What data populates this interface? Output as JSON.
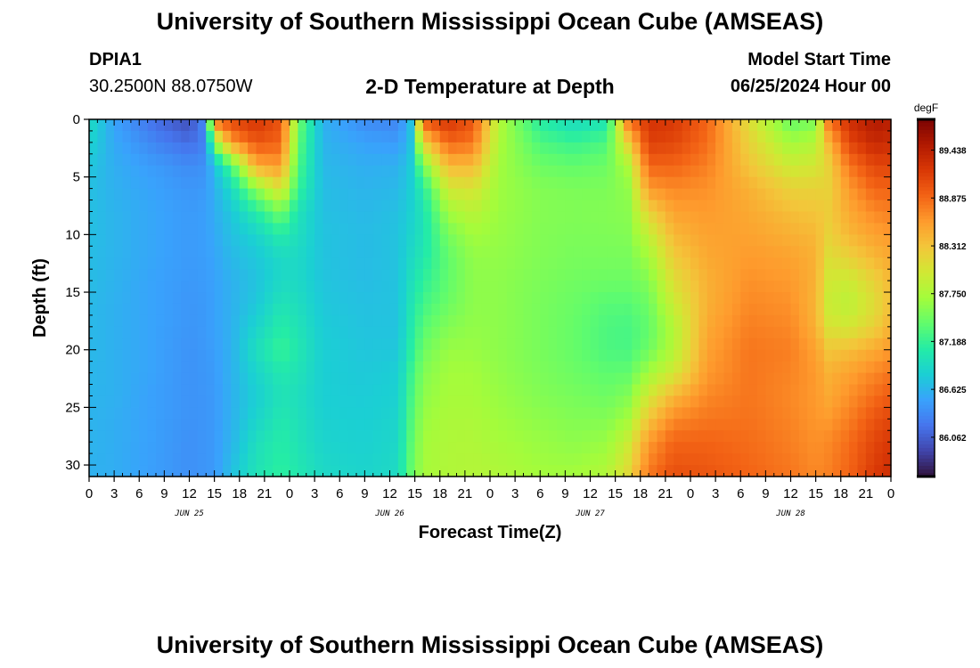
{
  "header": {
    "title": "University of Southern Mississippi Ocean Cube (AMSEAS)",
    "station_id": "DPIA1",
    "station_location": "30.2500N  88.0750W",
    "subtitle": "2-D Temperature at Depth",
    "model_start_label": "Model Start Time",
    "model_start_value": "06/25/2024 Hour 00"
  },
  "footer": {
    "title": "University of Southern Mississippi Ocean Cube (AMSEAS)"
  },
  "chart_data": {
    "type": "heatmap",
    "xlabel": "Forecast Time(Z)",
    "ylabel": "Depth (ft)",
    "x_hours_range": [
      0,
      96
    ],
    "x_ticks": [
      {
        "hour": 0,
        "label": "0"
      },
      {
        "hour": 3,
        "label": "3"
      },
      {
        "hour": 6,
        "label": "6"
      },
      {
        "hour": 9,
        "label": "9"
      },
      {
        "hour": 12,
        "label": "12"
      },
      {
        "hour": 15,
        "label": "15"
      },
      {
        "hour": 18,
        "label": "18"
      },
      {
        "hour": 21,
        "label": "21"
      },
      {
        "hour": 24,
        "label": "0"
      },
      {
        "hour": 27,
        "label": "3"
      },
      {
        "hour": 30,
        "label": "6"
      },
      {
        "hour": 33,
        "label": "9"
      },
      {
        "hour": 36,
        "label": "12"
      },
      {
        "hour": 39,
        "label": "15"
      },
      {
        "hour": 42,
        "label": "18"
      },
      {
        "hour": 45,
        "label": "21"
      },
      {
        "hour": 48,
        "label": "0"
      },
      {
        "hour": 51,
        "label": "3"
      },
      {
        "hour": 54,
        "label": "6"
      },
      {
        "hour": 57,
        "label": "9"
      },
      {
        "hour": 60,
        "label": "12"
      },
      {
        "hour": 63,
        "label": "15"
      },
      {
        "hour": 66,
        "label": "18"
      },
      {
        "hour": 69,
        "label": "21"
      },
      {
        "hour": 72,
        "label": "0"
      },
      {
        "hour": 75,
        "label": "3"
      },
      {
        "hour": 78,
        "label": "6"
      },
      {
        "hour": 81,
        "label": "9"
      },
      {
        "hour": 84,
        "label": "12"
      },
      {
        "hour": 87,
        "label": "15"
      },
      {
        "hour": 90,
        "label": "18"
      },
      {
        "hour": 93,
        "label": "21"
      },
      {
        "hour": 96,
        "label": "0"
      }
    ],
    "date_labels": [
      {
        "hour": 12,
        "label": "JUN 25"
      },
      {
        "hour": 36,
        "label": "JUN 26"
      },
      {
        "hour": 60,
        "label": "JUN 27"
      },
      {
        "hour": 84,
        "label": "JUN 28"
      }
    ],
    "y_range": [
      0,
      31
    ],
    "y_ticks": [
      0,
      5,
      10,
      15,
      20,
      25,
      30
    ],
    "y_inverted": true,
    "colorbar": {
      "unit": "degF",
      "range": [
        85.6,
        89.8
      ],
      "ticks": [
        "89.438",
        "88.875",
        "88.312",
        "87.750",
        "87.188",
        "86.625",
        "86.062"
      ],
      "colormap": [
        "#30123b",
        "#4145ab",
        "#4675ed",
        "#39a2fc",
        "#1bcfd4",
        "#24eca6",
        "#61fc6c",
        "#a4fc3b",
        "#d1e834",
        "#f3c63a",
        "#fe9b2d",
        "#f36315",
        "#d93806",
        "#b11901",
        "#7a0402"
      ]
    },
    "profiles": {
      "depths": [
        0,
        2,
        4,
        6,
        8,
        10,
        12,
        14,
        16,
        18,
        20,
        22,
        24,
        26,
        28,
        31
      ],
      "series": [
        {
          "hour": 0,
          "values": [
            86.95,
            86.85,
            86.75,
            86.7,
            86.7,
            86.7,
            86.68,
            86.68,
            86.66,
            86.65,
            86.65,
            86.64,
            86.63,
            86.62,
            86.62,
            86.6
          ]
        },
        {
          "hour": 3,
          "values": [
            86.5,
            86.55,
            86.58,
            86.6,
            86.62,
            86.62,
            86.62,
            86.61,
            86.6,
            86.6,
            86.6,
            86.6,
            86.6,
            86.58,
            86.58,
            86.58
          ]
        },
        {
          "hour": 8,
          "values": [
            86.15,
            86.3,
            86.45,
            86.5,
            86.52,
            86.52,
            86.52,
            86.5,
            86.5,
            86.5,
            86.5,
            86.5,
            86.48,
            86.48,
            86.48,
            86.47
          ]
        },
        {
          "hour": 12,
          "values": [
            85.95,
            86.15,
            86.35,
            86.42,
            86.45,
            86.45,
            86.45,
            86.44,
            86.42,
            86.42,
            86.4,
            86.4,
            86.4,
            86.4,
            86.38,
            86.38
          ]
        },
        {
          "hour": 14,
          "values": [
            86.4,
            86.3,
            86.4,
            86.45,
            86.48,
            86.48,
            86.48,
            86.46,
            86.45,
            86.45,
            86.44,
            86.43,
            86.42,
            86.42,
            86.42,
            86.42
          ]
        },
        {
          "hour": 15,
          "values": [
            88.9,
            87.6,
            86.7,
            86.6,
            86.58,
            86.55,
            86.52,
            86.5,
            86.5,
            86.5,
            86.48,
            86.46,
            86.45,
            86.45,
            86.45,
            86.45
          ]
        },
        {
          "hour": 17,
          "values": [
            89.1,
            88.6,
            87.3,
            86.9,
            86.75,
            86.7,
            86.65,
            86.6,
            86.6,
            86.6,
            86.6,
            86.6,
            86.6,
            86.6,
            86.62,
            86.7
          ]
        },
        {
          "hour": 20,
          "values": [
            89.25,
            89.0,
            88.5,
            87.6,
            87.1,
            86.85,
            86.75,
            86.72,
            86.75,
            86.85,
            86.95,
            86.85,
            86.8,
            86.85,
            86.95,
            87.0
          ]
        },
        {
          "hour": 23,
          "values": [
            89.0,
            88.9,
            88.6,
            88.1,
            87.5,
            87.1,
            86.9,
            86.9,
            87.0,
            87.1,
            87.2,
            87.05,
            87.0,
            87.05,
            87.1,
            87.15
          ]
        },
        {
          "hour": 25,
          "values": [
            87.5,
            87.4,
            87.3,
            87.2,
            87.0,
            86.95,
            86.9,
            86.9,
            86.95,
            87.0,
            87.05,
            87.0,
            86.95,
            86.98,
            87.0,
            87.05
          ]
        },
        {
          "hour": 28,
          "values": [
            86.6,
            86.62,
            86.65,
            86.68,
            86.7,
            86.72,
            86.72,
            86.73,
            86.75,
            86.78,
            86.8,
            86.8,
            86.8,
            86.82,
            86.85,
            86.9
          ]
        },
        {
          "hour": 33,
          "values": [
            86.35,
            86.5,
            86.58,
            86.62,
            86.65,
            86.67,
            86.67,
            86.68,
            86.7,
            86.72,
            86.74,
            86.76,
            86.78,
            86.8,
            86.82,
            86.85
          ]
        },
        {
          "hour": 37,
          "values": [
            86.3,
            86.45,
            86.6,
            86.65,
            86.7,
            86.72,
            86.72,
            86.72,
            86.72,
            86.72,
            86.75,
            86.8,
            86.82,
            86.85,
            86.88,
            86.92
          ]
        },
        {
          "hour": 38.5,
          "values": [
            86.7,
            86.72,
            86.78,
            86.8,
            86.82,
            86.85,
            86.9,
            86.95,
            87.0,
            87.05,
            87.1,
            87.2,
            87.25,
            87.3,
            87.35,
            87.4
          ]
        },
        {
          "hour": 40,
          "values": [
            89.0,
            88.2,
            87.5,
            87.1,
            87.0,
            87.0,
            87.05,
            87.15,
            87.25,
            87.35,
            87.45,
            87.55,
            87.6,
            87.65,
            87.7,
            87.72
          ]
        },
        {
          "hour": 43,
          "values": [
            89.25,
            88.9,
            88.4,
            88.0,
            87.7,
            87.5,
            87.4,
            87.4,
            87.45,
            87.55,
            87.65,
            87.7,
            87.72,
            87.75,
            87.77,
            87.78
          ]
        },
        {
          "hour": 46,
          "values": [
            89.0,
            88.8,
            88.4,
            88.05,
            87.85,
            87.7,
            87.62,
            87.6,
            87.6,
            87.62,
            87.65,
            87.7,
            87.72,
            87.75,
            87.78,
            87.8
          ]
        },
        {
          "hour": 49,
          "values": [
            87.8,
            87.75,
            87.7,
            87.68,
            87.66,
            87.64,
            87.62,
            87.6,
            87.6,
            87.6,
            87.6,
            87.62,
            87.65,
            87.68,
            87.72,
            87.78
          ]
        },
        {
          "hour": 54,
          "values": [
            87.1,
            87.3,
            87.45,
            87.55,
            87.56,
            87.55,
            87.54,
            87.52,
            87.5,
            87.5,
            87.5,
            87.52,
            87.55,
            87.6,
            87.65,
            87.7
          ]
        },
        {
          "hour": 58,
          "values": [
            86.9,
            87.2,
            87.4,
            87.52,
            87.54,
            87.52,
            87.5,
            87.47,
            87.44,
            87.42,
            87.42,
            87.45,
            87.5,
            87.55,
            87.6,
            87.7
          ]
        },
        {
          "hour": 62,
          "values": [
            87.0,
            87.3,
            87.45,
            87.52,
            87.55,
            87.53,
            87.5,
            87.45,
            87.35,
            87.3,
            87.3,
            87.38,
            87.45,
            87.55,
            87.65,
            87.8
          ]
        },
        {
          "hour": 64.5,
          "values": [
            88.8,
            88.2,
            87.75,
            87.62,
            87.58,
            87.55,
            87.5,
            87.45,
            87.35,
            87.28,
            87.28,
            87.4,
            87.55,
            87.7,
            87.95,
            88.15
          ]
        },
        {
          "hour": 67,
          "values": [
            89.25,
            89.15,
            88.9,
            88.6,
            88.2,
            87.9,
            87.7,
            87.55,
            87.45,
            87.4,
            87.45,
            87.7,
            88.0,
            88.3,
            88.6,
            88.8
          ]
        },
        {
          "hour": 70,
          "values": [
            89.2,
            89.1,
            88.9,
            88.7,
            88.55,
            88.4,
            88.25,
            88.1,
            87.95,
            87.8,
            87.8,
            88.0,
            88.4,
            88.7,
            88.9,
            89.05
          ]
        },
        {
          "hour": 74,
          "values": [
            88.9,
            88.85,
            88.75,
            88.65,
            88.6,
            88.55,
            88.5,
            88.45,
            88.45,
            88.5,
            88.55,
            88.6,
            88.7,
            88.8,
            88.9,
            89.0
          ]
        },
        {
          "hour": 79,
          "values": [
            88.1,
            88.2,
            88.3,
            88.45,
            88.5,
            88.55,
            88.6,
            88.65,
            88.7,
            88.75,
            88.8,
            88.8,
            88.8,
            88.82,
            88.85,
            88.9
          ]
        },
        {
          "hour": 84,
          "values": [
            87.4,
            87.7,
            87.95,
            88.2,
            88.35,
            88.45,
            88.55,
            88.6,
            88.65,
            88.7,
            88.75,
            88.72,
            88.7,
            88.72,
            88.75,
            88.8
          ]
        },
        {
          "hour": 87,
          "values": [
            87.5,
            87.8,
            88.0,
            88.2,
            88.3,
            88.4,
            88.45,
            88.45,
            88.42,
            88.45,
            88.55,
            88.6,
            88.6,
            88.62,
            88.65,
            88.7
          ]
        },
        {
          "hour": 88.5,
          "values": [
            88.8,
            88.4,
            88.2,
            88.2,
            88.25,
            88.2,
            88.1,
            88.0,
            87.95,
            88.05,
            88.3,
            88.45,
            88.5,
            88.6,
            88.7,
            88.75
          ]
        },
        {
          "hour": 91,
          "values": [
            89.3,
            89.1,
            88.8,
            88.6,
            88.5,
            88.4,
            88.2,
            87.95,
            87.85,
            88.0,
            88.35,
            88.55,
            88.65,
            88.75,
            88.85,
            88.9
          ]
        },
        {
          "hour": 94,
          "values": [
            89.5,
            89.35,
            89.1,
            88.9,
            88.7,
            88.55,
            88.4,
            88.2,
            88.1,
            88.2,
            88.5,
            88.7,
            88.85,
            89.0,
            89.1,
            89.2
          ]
        },
        {
          "hour": 96,
          "values": [
            89.45,
            89.3,
            89.1,
            88.9,
            88.75,
            88.6,
            88.5,
            88.4,
            88.35,
            88.45,
            88.6,
            88.8,
            88.95,
            89.1,
            89.2,
            89.3
          ]
        }
      ]
    }
  }
}
